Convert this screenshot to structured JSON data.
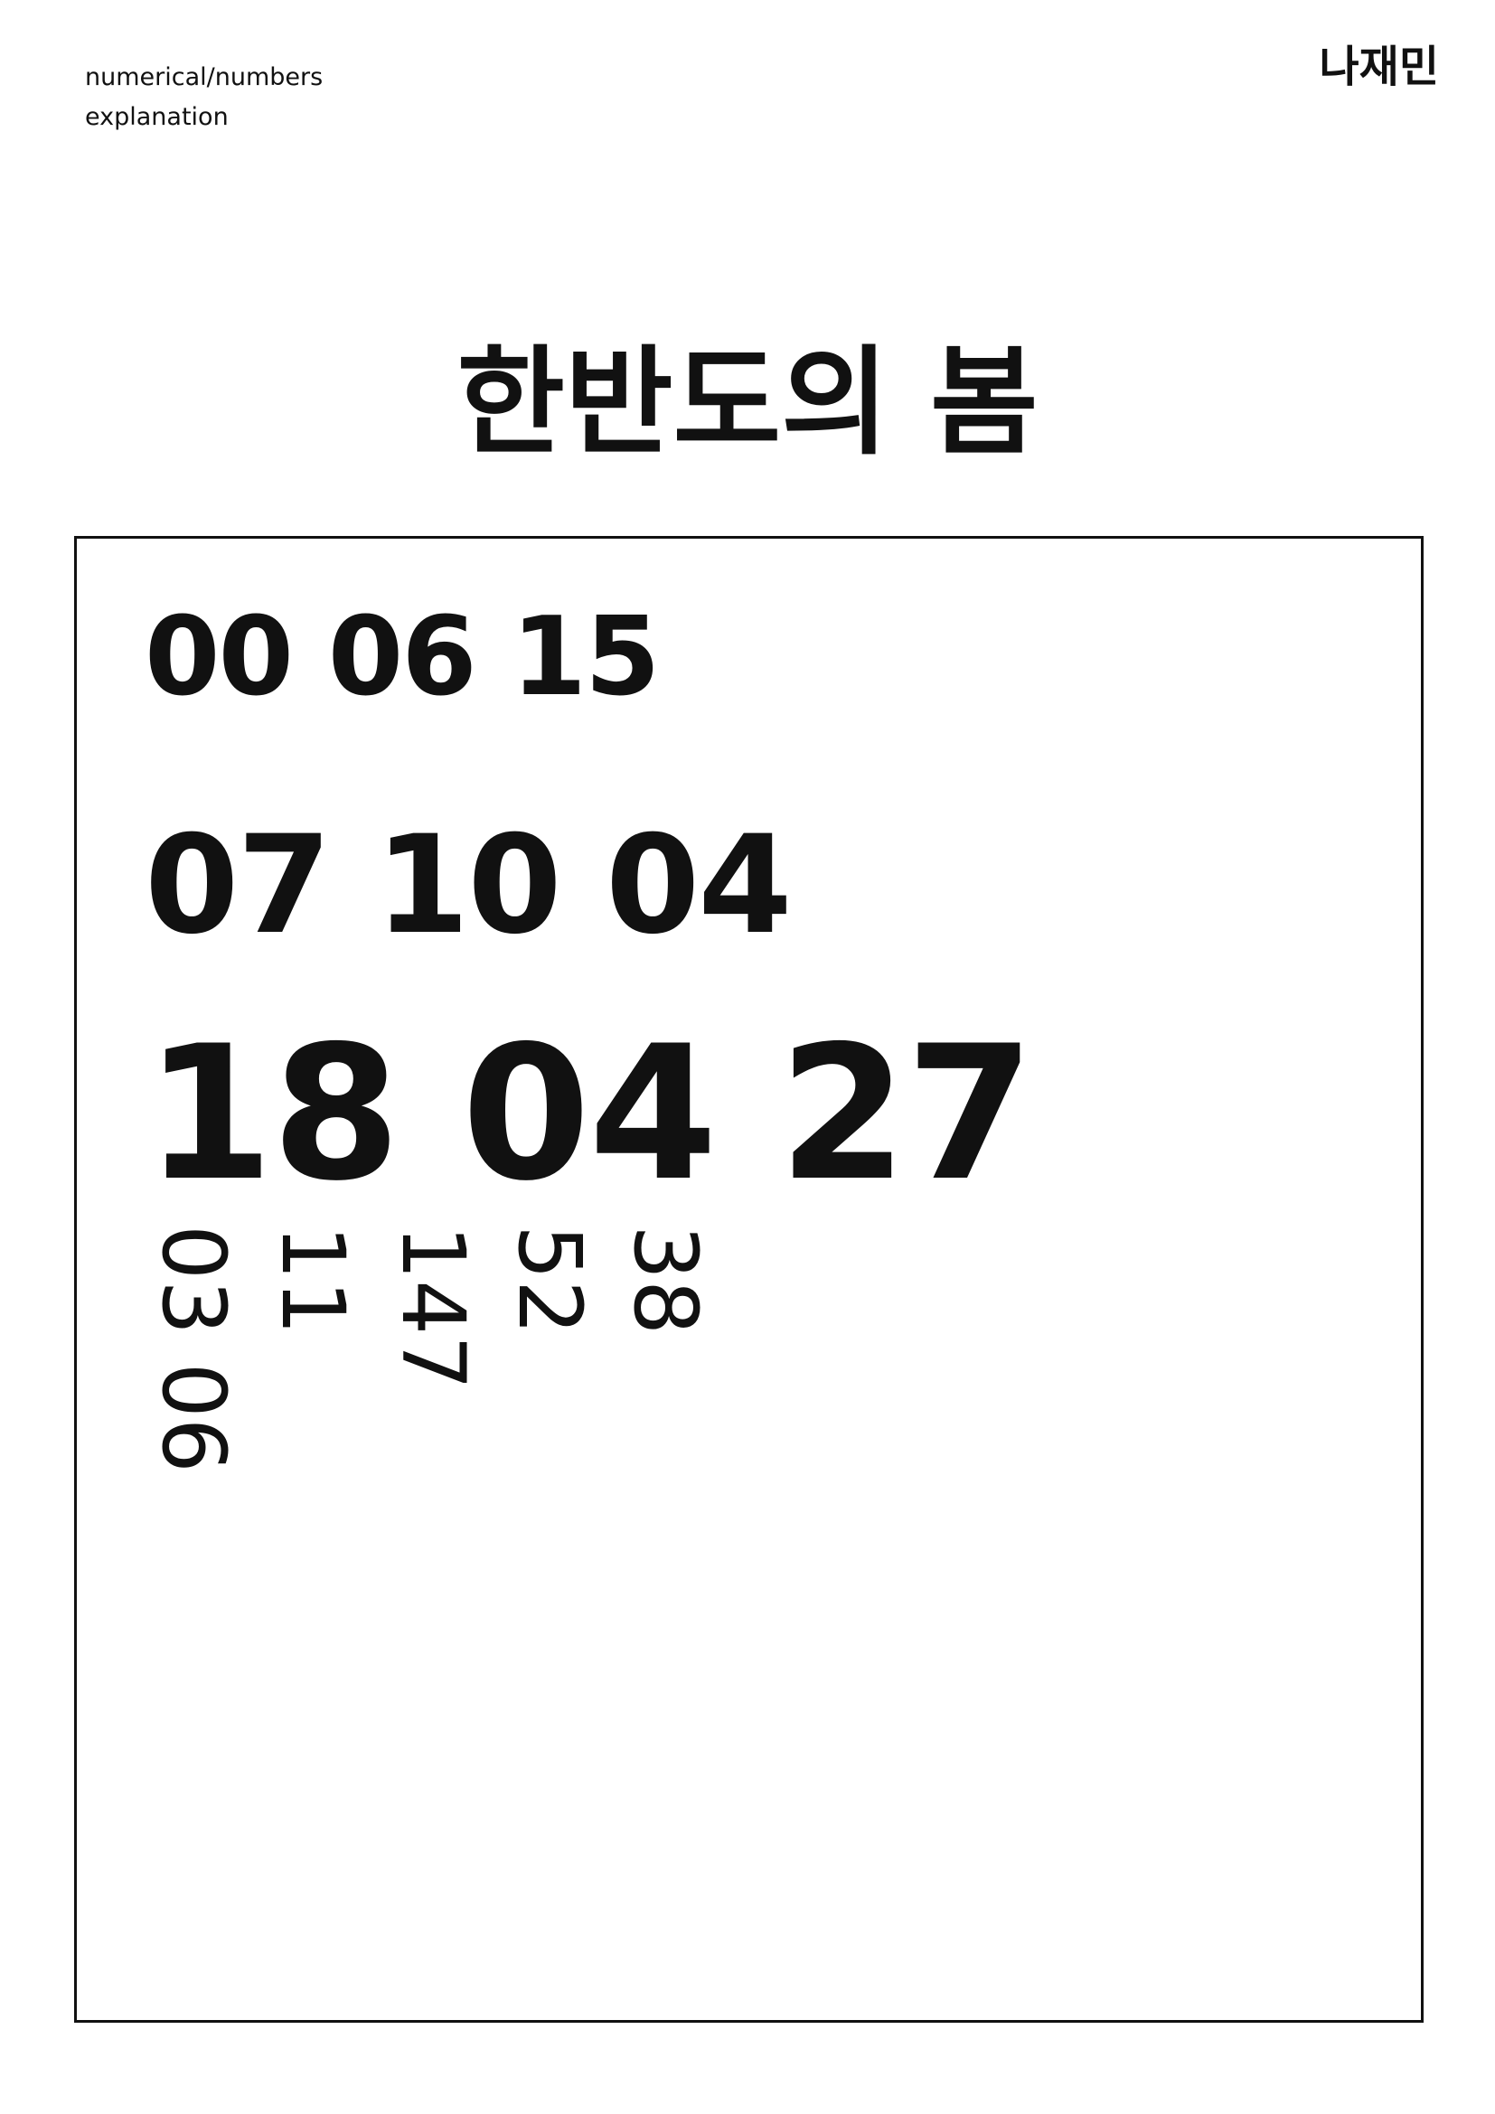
{
  "header": {
    "subtitle_line1": "numerical/numbers",
    "subtitle_line2": "explanation",
    "author": "나재민"
  },
  "title": "한반도의 봄",
  "numbers": {
    "line1": "00 06 15",
    "line2": "07 10 04",
    "line3": "18 04 27",
    "vertical": [
      "03 06",
      "11",
      "147",
      "52",
      "38"
    ]
  }
}
